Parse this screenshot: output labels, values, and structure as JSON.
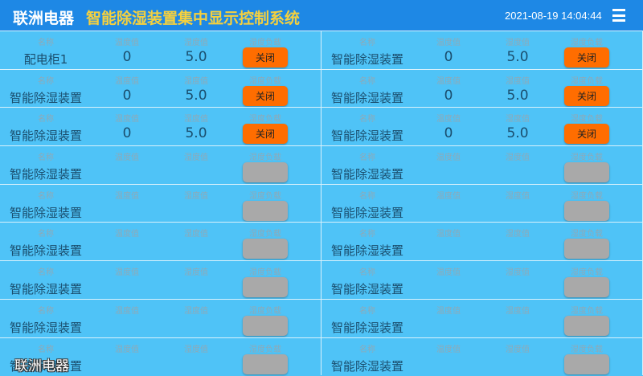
{
  "header": {
    "brand": "联洲电器",
    "title": "智能除湿装置集中显示控制系统",
    "datetime": "2021-08-19 14:04:44",
    "menu_icon": "hamburger-menu-icon"
  },
  "labels": {
    "name": "名称",
    "temp": "温度值",
    "humidity": "湿度值",
    "load": "湿度负载"
  },
  "colors": {
    "header": "#1e88e5",
    "title": "#f4d03f",
    "panel": "#4fc3f7",
    "button_on": "#ff6d00",
    "button_off": "#a9a9a9"
  },
  "devices": [
    {
      "name": "配电柜1",
      "temp": "0",
      "humidity": "5.0",
      "load": "关闭",
      "active": true
    },
    {
      "name": "智能除湿装置",
      "temp": "0",
      "humidity": "5.0",
      "load": "关闭",
      "active": true
    },
    {
      "name": "智能除湿装置",
      "temp": "0",
      "humidity": "5.0",
      "load": "关闭",
      "active": true
    },
    {
      "name": "智能除湿装置",
      "temp": "0",
      "humidity": "5.0",
      "load": "关闭",
      "active": true
    },
    {
      "name": "智能除湿装置",
      "temp": "0",
      "humidity": "5.0",
      "load": "关闭",
      "active": true
    },
    {
      "name": "智能除湿装置",
      "temp": "0",
      "humidity": "5.0",
      "load": "关闭",
      "active": true
    },
    {
      "name": "智能除湿装置",
      "active": false
    },
    {
      "name": "智能除湿装置",
      "active": false
    },
    {
      "name": "智能除湿装置",
      "active": false
    },
    {
      "name": "智能除湿装置",
      "active": false
    },
    {
      "name": "智能除湿装置",
      "active": false
    },
    {
      "name": "智能除湿装置",
      "active": false
    },
    {
      "name": "智能除湿装置",
      "active": false
    },
    {
      "name": "智能除湿装置",
      "active": false
    },
    {
      "name": "智能除湿装置",
      "active": false
    },
    {
      "name": "智能除湿装置",
      "active": false
    },
    {
      "name": "智能除湿装置",
      "active": false
    },
    {
      "name": "智能除湿装置",
      "active": false
    }
  ],
  "watermark": "联洲电器"
}
